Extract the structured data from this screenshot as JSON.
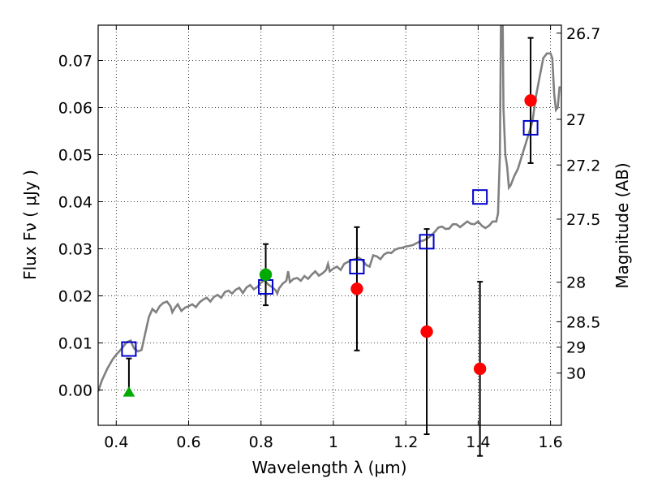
{
  "chart_data": {
    "type": "scatter",
    "title": "",
    "xlabel": "Wavelength  λ (μm)",
    "ylabel_left": "Flux  Fν  ( μJy )",
    "ylabel_right": "Magnitude (AB)",
    "xlim": [
      0.35,
      1.63
    ],
    "ylim": [
      -0.0075,
      0.0775
    ],
    "grid": true,
    "x_ticks": [
      0.4,
      0.6,
      0.8,
      1.0,
      1.2,
      1.4,
      1.6
    ],
    "x_tick_labels": [
      "0.4",
      "0.6",
      "0.8",
      "1",
      "1.2",
      "1.4",
      "1.6"
    ],
    "y_ticks": [
      0.0,
      0.01,
      0.02,
      0.03,
      0.04,
      0.05,
      0.06,
      0.07
    ],
    "y_tick_labels": [
      "0.00",
      "0.01",
      "0.02",
      "0.03",
      "0.04",
      "0.05",
      "0.06",
      "0.07"
    ],
    "right_ticks": [
      {
        "label": "26.7",
        "flux": 0.0758
      },
      {
        "label": "27",
        "flux": 0.0575
      },
      {
        "label": "27.2",
        "flux": 0.0478
      },
      {
        "label": "27.5",
        "flux": 0.0363
      },
      {
        "label": "28",
        "flux": 0.0229
      },
      {
        "label": "28.5",
        "flux": 0.0145
      },
      {
        "label": "29",
        "flux": 0.0091
      },
      {
        "label": "30",
        "flux": 0.0036
      }
    ],
    "colors": {
      "model": "#808080",
      "observed": "#ff0000",
      "upper_limit": "#00aa00",
      "model_photometry": "#0000cc",
      "errorbar": "#000000"
    },
    "series": [
      {
        "type": "line",
        "points": [
          [
            0.35,
            -0.0003
          ],
          [
            0.36,
            0.002
          ],
          [
            0.375,
            0.0045
          ],
          [
            0.39,
            0.0065
          ],
          [
            0.4,
            0.0075
          ],
          [
            0.415,
            0.0088
          ],
          [
            0.425,
            0.0098
          ],
          [
            0.43,
            0.0102
          ],
          [
            0.44,
            0.0105
          ],
          [
            0.445,
            0.0095
          ],
          [
            0.45,
            0.0088
          ],
          [
            0.46,
            0.0082
          ],
          [
            0.47,
            0.0085
          ],
          [
            0.48,
            0.012
          ],
          [
            0.49,
            0.0155
          ],
          [
            0.5,
            0.0172
          ],
          [
            0.51,
            0.0165
          ],
          [
            0.52,
            0.0178
          ],
          [
            0.53,
            0.0185
          ],
          [
            0.54,
            0.0188
          ],
          [
            0.55,
            0.0178
          ],
          [
            0.555,
            0.0165
          ],
          [
            0.56,
            0.0172
          ],
          [
            0.57,
            0.0182
          ],
          [
            0.58,
            0.0168
          ],
          [
            0.59,
            0.0175
          ],
          [
            0.6,
            0.0178
          ],
          [
            0.61,
            0.0182
          ],
          [
            0.62,
            0.0176
          ],
          [
            0.63,
            0.0186
          ],
          [
            0.64,
            0.0192
          ],
          [
            0.65,
            0.0196
          ],
          [
            0.66,
            0.0188
          ],
          [
            0.67,
            0.0198
          ],
          [
            0.68,
            0.0202
          ],
          [
            0.69,
            0.0196
          ],
          [
            0.7,
            0.0208
          ],
          [
            0.71,
            0.0211
          ],
          [
            0.72,
            0.0205
          ],
          [
            0.73,
            0.0213
          ],
          [
            0.74,
            0.0217
          ],
          [
            0.75,
            0.0206
          ],
          [
            0.76,
            0.0218
          ],
          [
            0.77,
            0.0223
          ],
          [
            0.78,
            0.0214
          ],
          [
            0.79,
            0.0219
          ],
          [
            0.8,
            0.0228
          ],
          [
            0.81,
            0.0233
          ],
          [
            0.82,
            0.0224
          ],
          [
            0.83,
            0.0219
          ],
          [
            0.84,
            0.0212
          ],
          [
            0.845,
            0.0205
          ],
          [
            0.85,
            0.0216
          ],
          [
            0.86,
            0.0226
          ],
          [
            0.87,
            0.0232
          ],
          [
            0.875,
            0.0252
          ],
          [
            0.88,
            0.0229
          ],
          [
            0.89,
            0.0236
          ],
          [
            0.9,
            0.0238
          ],
          [
            0.91,
            0.0232
          ],
          [
            0.92,
            0.0242
          ],
          [
            0.93,
            0.0236
          ],
          [
            0.94,
            0.0245
          ],
          [
            0.95,
            0.0252
          ],
          [
            0.96,
            0.0243
          ],
          [
            0.97,
            0.0248
          ],
          [
            0.98,
            0.0255
          ],
          [
            0.985,
            0.0268
          ],
          [
            0.99,
            0.0252
          ],
          [
            1.0,
            0.0258
          ],
          [
            1.01,
            0.0262
          ],
          [
            1.02,
            0.0255
          ],
          [
            1.03,
            0.0268
          ],
          [
            1.04,
            0.0272
          ],
          [
            1.05,
            0.0276
          ],
          [
            1.06,
            0.0278
          ],
          [
            1.07,
            0.0281
          ],
          [
            1.08,
            0.0276
          ],
          [
            1.09,
            0.0266
          ],
          [
            1.1,
            0.0262
          ],
          [
            1.11,
            0.0286
          ],
          [
            1.12,
            0.0284
          ],
          [
            1.13,
            0.0278
          ],
          [
            1.14,
            0.0288
          ],
          [
            1.15,
            0.0292
          ],
          [
            1.16,
            0.0291
          ],
          [
            1.17,
            0.0298
          ],
          [
            1.18,
            0.0301
          ],
          [
            1.19,
            0.0302
          ],
          [
            1.2,
            0.0305
          ],
          [
            1.21,
            0.0306
          ],
          [
            1.22,
            0.0308
          ],
          [
            1.23,
            0.0312
          ],
          [
            1.24,
            0.0316
          ],
          [
            1.25,
            0.0318
          ],
          [
            1.26,
            0.0322
          ],
          [
            1.27,
            0.0328
          ],
          [
            1.28,
            0.0336
          ],
          [
            1.29,
            0.0345
          ],
          [
            1.3,
            0.0347
          ],
          [
            1.31,
            0.0342
          ],
          [
            1.32,
            0.0343
          ],
          [
            1.33,
            0.0352
          ],
          [
            1.34,
            0.0352
          ],
          [
            1.35,
            0.0346
          ],
          [
            1.36,
            0.0352
          ],
          [
            1.37,
            0.0358
          ],
          [
            1.38,
            0.0353
          ],
          [
            1.39,
            0.0352
          ],
          [
            1.4,
            0.0358
          ],
          [
            1.41,
            0.0349
          ],
          [
            1.42,
            0.0344
          ],
          [
            1.43,
            0.0349
          ],
          [
            1.44,
            0.0358
          ],
          [
            1.45,
            0.0358
          ],
          [
            1.455,
            0.0375
          ],
          [
            1.46,
            0.05
          ],
          [
            1.463,
            0.0775
          ],
          [
            1.468,
            0.0775
          ],
          [
            1.47,
            0.06
          ],
          [
            1.475,
            0.05
          ],
          [
            1.48,
            0.0475
          ],
          [
            1.485,
            0.043
          ],
          [
            1.49,
            0.0435
          ],
          [
            1.5,
            0.0455
          ],
          [
            1.51,
            0.047
          ],
          [
            1.52,
            0.0495
          ],
          [
            1.53,
            0.052
          ],
          [
            1.54,
            0.0545
          ],
          [
            1.55,
            0.057
          ],
          [
            1.56,
            0.0625
          ],
          [
            1.57,
            0.0665
          ],
          [
            1.58,
            0.0705
          ],
          [
            1.59,
            0.0715
          ],
          [
            1.6,
            0.0715
          ],
          [
            1.605,
            0.0705
          ],
          [
            1.61,
            0.063
          ],
          [
            1.615,
            0.0595
          ],
          [
            1.62,
            0.06
          ],
          [
            1.625,
            0.0645
          ]
        ]
      },
      {
        "type": "scatter",
        "marker": "circle",
        "points": [
          {
            "x": 1.065,
            "y": 0.0215,
            "err_lo": 0.0131,
            "err_hi": 0.0131
          },
          {
            "x": 1.258,
            "y": 0.0124,
            "err_lo": 0.0218,
            "err_hi": 0.0218
          },
          {
            "x": 1.405,
            "y": 0.0045,
            "err_lo": 0.0185,
            "err_hi": 0.0185
          },
          {
            "x": 1.545,
            "y": 0.0615,
            "err_lo": 0.0133,
            "err_hi": 0.0133
          }
        ]
      },
      {
        "type": "scatter",
        "marker": "circle",
        "points": [
          {
            "x": 0.813,
            "y": 0.0245,
            "err_lo": 0.0065,
            "err_hi": 0.0065
          }
        ]
      },
      {
        "type": "scatter",
        "marker": "triangle",
        "points": [
          {
            "x": 0.435,
            "y": -0.0005,
            "err_lo": 0.0,
            "err_hi": 0.0072
          }
        ]
      },
      {
        "type": "scatter",
        "marker": "square-open",
        "points": [
          {
            "x": 0.435,
            "y": 0.0087
          },
          {
            "x": 0.813,
            "y": 0.0219
          },
          {
            "x": 1.065,
            "y": 0.0262
          },
          {
            "x": 1.258,
            "y": 0.0315
          },
          {
            "x": 1.405,
            "y": 0.041
          },
          {
            "x": 1.545,
            "y": 0.0557
          }
        ]
      }
    ]
  }
}
